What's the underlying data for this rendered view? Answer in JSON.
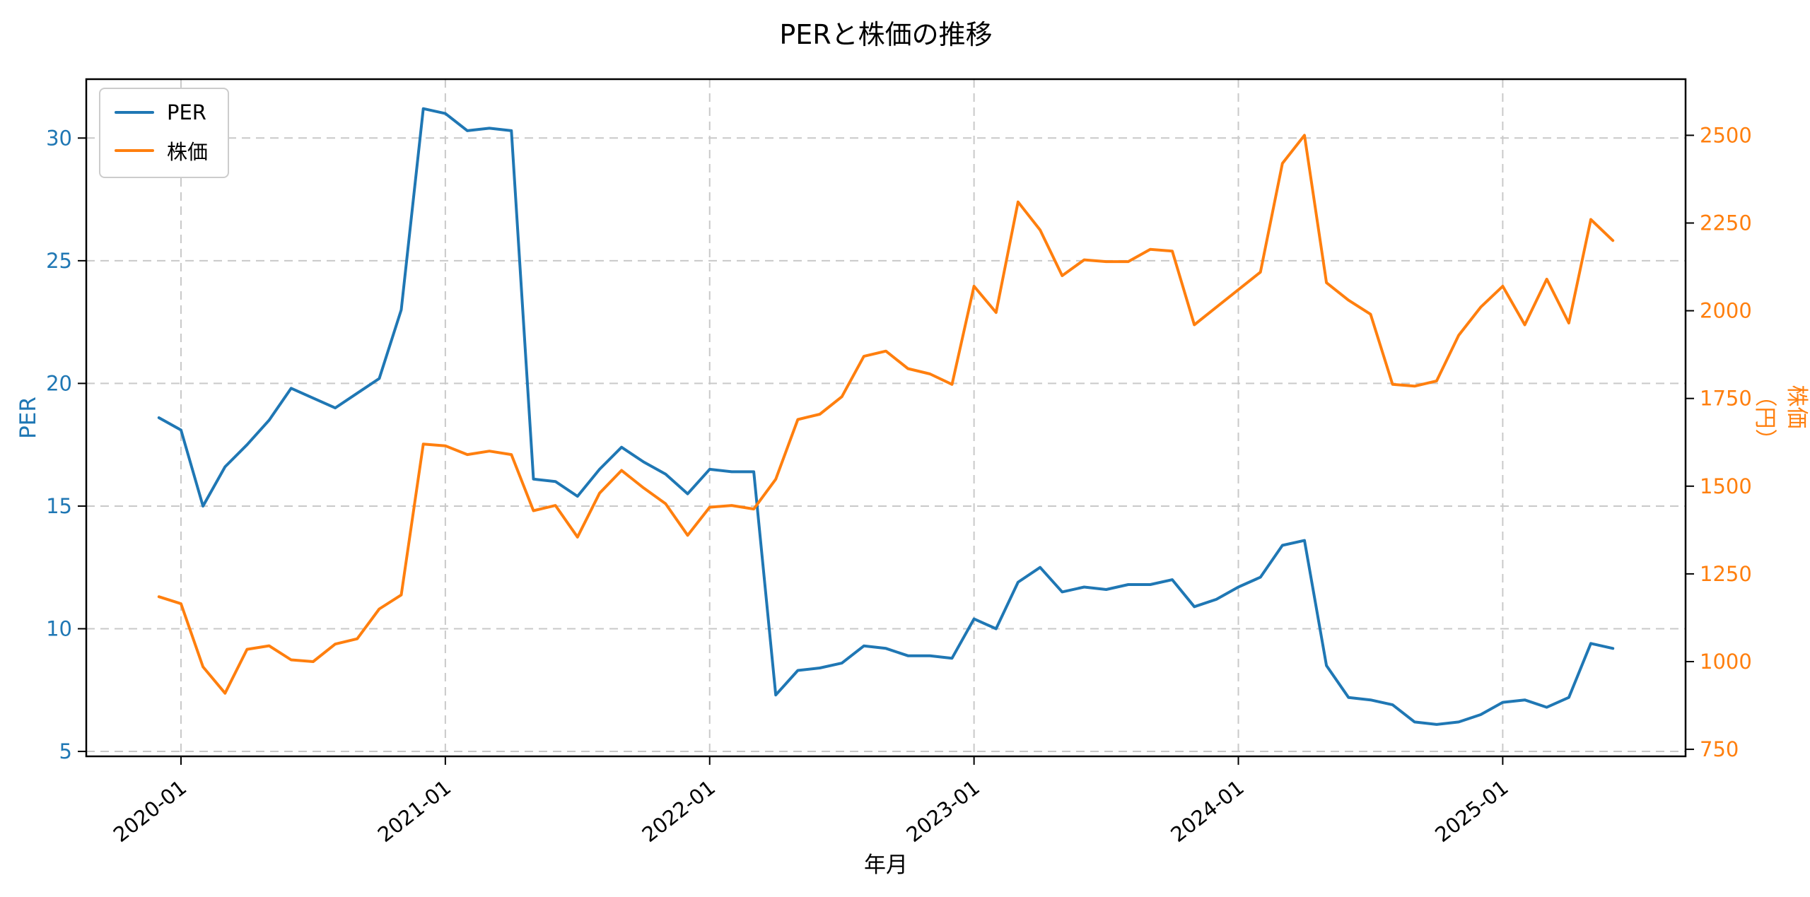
{
  "figure": {
    "title": "PERと株価の推移",
    "xlabel": "年月",
    "ylabel_left": "PER",
    "ylabel_right": "株価（円）",
    "background_color": "#ffffff",
    "frame_color": "#000000"
  },
  "legend": {
    "position": "upper-left",
    "items": [
      {
        "label": "PER",
        "color": "#1f77b4"
      },
      {
        "label": "株価",
        "color": "#ff7f0e"
      }
    ]
  },
  "chart_data": {
    "type": "line",
    "title": "PERと株価の推移",
    "xlabel": "年月",
    "ylabel_left": "PER",
    "ylabel_right": "株価（円）",
    "x": [
      "2019-12",
      "2020-01",
      "2020-02",
      "2020-03",
      "2020-04",
      "2020-05",
      "2020-06",
      "2020-07",
      "2020-08",
      "2020-09",
      "2020-10",
      "2020-11",
      "2020-12",
      "2021-01",
      "2021-02",
      "2021-03",
      "2021-04",
      "2021-05",
      "2021-06",
      "2021-07",
      "2021-08",
      "2021-09",
      "2021-10",
      "2021-11",
      "2021-12",
      "2022-01",
      "2022-02",
      "2022-03",
      "2022-04",
      "2022-05",
      "2022-06",
      "2022-07",
      "2022-08",
      "2022-09",
      "2022-10",
      "2022-11",
      "2022-12",
      "2023-01",
      "2023-02",
      "2023-03",
      "2023-04",
      "2023-05",
      "2023-06",
      "2023-07",
      "2023-08",
      "2023-09",
      "2023-10",
      "2023-11",
      "2023-12",
      "2024-01",
      "2024-02",
      "2024-03",
      "2024-04",
      "2024-05",
      "2024-06",
      "2024-07",
      "2024-08",
      "2024-09",
      "2024-10",
      "2024-11",
      "2024-12",
      "2025-01",
      "2025-02",
      "2025-03",
      "2025-04",
      "2025-05",
      "2025-06"
    ],
    "series": [
      {
        "name": "PER",
        "axis": "left",
        "color": "#1f77b4",
        "values": [
          18.6,
          18.1,
          15.0,
          16.6,
          17.5,
          18.5,
          19.8,
          19.4,
          19.0,
          19.6,
          20.2,
          23.0,
          31.2,
          31.0,
          30.3,
          30.4,
          30.3,
          16.1,
          16.0,
          15.4,
          16.5,
          17.4,
          16.8,
          16.3,
          15.5,
          16.5,
          16.4,
          16.4,
          7.3,
          8.3,
          8.4,
          8.6,
          9.3,
          9.2,
          8.9,
          8.9,
          8.8,
          10.4,
          10.0,
          11.9,
          12.5,
          11.5,
          11.7,
          11.6,
          11.8,
          11.8,
          12.0,
          10.9,
          11.2,
          11.7,
          12.1,
          13.4,
          13.6,
          8.5,
          7.2,
          7.1,
          6.9,
          6.2,
          6.1,
          6.2,
          6.5,
          7.0,
          7.1,
          6.8,
          7.2,
          9.4,
          9.2
        ]
      },
      {
        "name": "株価",
        "axis": "right",
        "color": "#ff7f0e",
        "values": [
          1185,
          1165,
          985,
          910,
          1035,
          1045,
          1005,
          1000,
          1050,
          1065,
          1150,
          1190,
          1620,
          1615,
          1590,
          1600,
          1590,
          1430,
          1445,
          1355,
          1480,
          1545,
          1495,
          1450,
          1360,
          1440,
          1445,
          1435,
          1520,
          1690,
          1705,
          1755,
          1870,
          1885,
          1835,
          1820,
          1790,
          2070,
          1995,
          2310,
          2230,
          2100,
          2145,
          2140,
          2140,
          2175,
          2170,
          1960,
          2010,
          2060,
          2110,
          2420,
          2500,
          2080,
          2030,
          1990,
          1790,
          1785,
          1800,
          1930,
          2010,
          2070,
          1960,
          2090,
          1965,
          2260,
          2200
        ]
      }
    ],
    "xticks": {
      "indices": [
        1,
        13,
        25,
        37,
        49,
        61
      ],
      "labels": [
        "2020-01",
        "2021-01",
        "2022-01",
        "2023-01",
        "2024-01",
        "2025-01"
      ],
      "rotation_deg": -38
    },
    "yticks_left": [
      5,
      10,
      15,
      20,
      25,
      30
    ],
    "yticks_right": [
      750,
      1000,
      1250,
      1500,
      1750,
      2000,
      2250,
      2500
    ],
    "xlim": [
      -3.3,
      69.3
    ],
    "ylim_left": [
      4.8,
      32.4
    ],
    "ylim_right": [
      730,
      2660
    ],
    "grid": {
      "show": true,
      "style": "dashed",
      "color": "#c9c9c9"
    },
    "legend_position": "upper-left"
  }
}
